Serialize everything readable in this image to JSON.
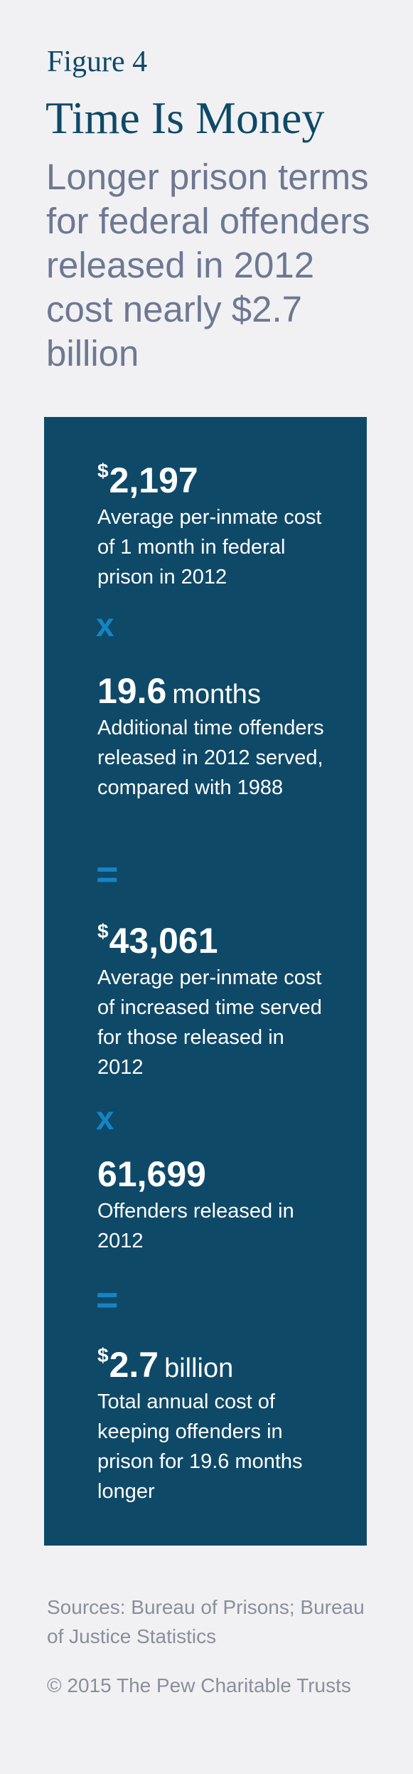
{
  "header": {
    "figure_label": "Figure 4",
    "title": "Time Is Money",
    "subtitle": "Longer prison terms for federal offenders released in 2012 cost nearly $2.7 billion"
  },
  "calculation": {
    "step1": {
      "currency": "$",
      "value": "2,197",
      "unit": "",
      "description": "Average per-inmate cost of 1 month in federal prison in 2012"
    },
    "op1": "x",
    "step2": {
      "value": "19.6",
      "unit": "months",
      "description": "Additional time offenders released in 2012 served, compared with 1988"
    },
    "op2": "=",
    "step3": {
      "currency": "$",
      "value": "43,061",
      "description": "Average per-inmate cost of increased time served for those released in 2012"
    },
    "op3": "x",
    "step4": {
      "value": "61,699",
      "description": "Offenders released in 2012"
    },
    "op4": "=",
    "step5": {
      "currency": "$",
      "value": "2.7",
      "unit": "billion",
      "description": "Total annual cost of keeping offenders in prison for 19.6 months longer"
    }
  },
  "footer": {
    "sources": "Sources: Bureau of Prisons; Bureau of Justice Statistics",
    "copyright": "© 2015 The Pew Charitable Trusts"
  },
  "colors": {
    "background": "#f1f1f3",
    "panel": "#0f4968",
    "title": "#0e4968",
    "subtitle": "#6e7893",
    "operator": "#1584c4",
    "footer_text": "#8a8f9c"
  }
}
